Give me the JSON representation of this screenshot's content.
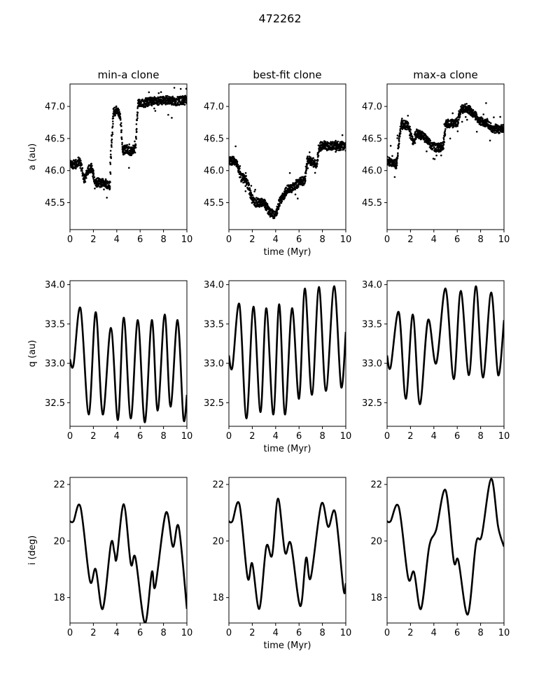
{
  "figure": {
    "suptitle": "472262",
    "columns": [
      "min-a clone",
      "best-fit clone",
      "max-a clone"
    ],
    "xlabel": "time (Myr)",
    "ylabels": [
      "a (au)",
      "q (au)",
      "i (deg)"
    ]
  },
  "chart_data": [
    {
      "type": "scatter",
      "row": 0,
      "col": 0,
      "title": "min-a clone",
      "xlabel": "",
      "ylabel": "a (au)",
      "xlim": [
        0,
        10
      ],
      "ylim": [
        45.08,
        47.35
      ],
      "xticks": [
        0,
        2,
        4,
        6,
        8,
        10
      ],
      "yticks": [
        45.5,
        46.0,
        46.5,
        47.0
      ],
      "series": [
        {
          "x": [
            0,
            0.5,
            0.8,
            1.0,
            1.2,
            1.5,
            1.8,
            2.0,
            2.1,
            2.3,
            2.6,
            3.0,
            3.4,
            3.5,
            3.7,
            4.0,
            4.3,
            4.5,
            4.8,
            5.2,
            5.6,
            5.8,
            6.2,
            7.0,
            8.0,
            9.0,
            10.0
          ],
          "y": [
            46.1,
            46.1,
            46.15,
            46.05,
            45.85,
            46.0,
            46.05,
            45.95,
            45.8,
            45.82,
            45.8,
            45.82,
            45.75,
            46.3,
            46.9,
            46.95,
            46.85,
            46.3,
            46.35,
            46.3,
            46.35,
            47.05,
            47.05,
            47.08,
            47.1,
            47.08,
            47.1
          ]
        }
      ]
    },
    {
      "type": "scatter",
      "row": 0,
      "col": 1,
      "title": "best-fit clone",
      "xlabel": "time (Myr)",
      "ylabel": "",
      "xlim": [
        0,
        10
      ],
      "ylim": [
        45.08,
        47.35
      ],
      "xticks": [
        0,
        2,
        4,
        6,
        8,
        10
      ],
      "yticks": [
        45.5,
        46.0,
        46.5,
        47.0
      ],
      "series": [
        {
          "x": [
            0,
            0.5,
            0.8,
            1.0,
            1.5,
            2.0,
            2.3,
            3.0,
            3.5,
            4.0,
            4.3,
            4.8,
            5.0,
            5.5,
            6.0,
            6.5,
            6.7,
            7.0,
            7.5,
            7.7,
            8.0,
            8.5,
            9.0,
            9.5,
            10.0
          ],
          "y": [
            46.15,
            46.15,
            46.05,
            45.9,
            45.85,
            45.55,
            45.5,
            45.5,
            45.35,
            45.3,
            45.5,
            45.65,
            45.7,
            45.75,
            45.82,
            45.85,
            46.15,
            46.15,
            46.1,
            46.35,
            46.4,
            46.38,
            46.4,
            46.38,
            46.4
          ]
        }
      ]
    },
    {
      "type": "scatter",
      "row": 0,
      "col": 2,
      "title": "max-a clone",
      "xlabel": "",
      "ylabel": "",
      "xlim": [
        0,
        10
      ],
      "ylim": [
        45.08,
        47.35
      ],
      "xticks": [
        0,
        2,
        4,
        6,
        8,
        10
      ],
      "yticks": [
        45.5,
        46.0,
        46.5,
        47.0
      ],
      "series": [
        {
          "x": [
            0,
            0.8,
            1.0,
            1.2,
            1.8,
            2.2,
            2.5,
            3.0,
            3.5,
            3.8,
            4.2,
            4.8,
            5.0,
            6.0,
            6.3,
            6.8,
            7.5,
            7.8,
            8.5,
            9.0,
            10.0
          ],
          "y": [
            46.15,
            46.1,
            46.45,
            46.72,
            46.7,
            46.45,
            46.58,
            46.55,
            46.45,
            46.4,
            46.35,
            46.38,
            46.72,
            46.75,
            46.95,
            46.98,
            46.88,
            46.78,
            46.75,
            46.65,
            46.65
          ]
        }
      ]
    },
    {
      "type": "line",
      "row": 1,
      "col": 0,
      "title": "",
      "xlabel": "",
      "ylabel": "q (au)",
      "xlim": [
        0,
        10
      ],
      "ylim": [
        32.2,
        34.05
      ],
      "xticks": [
        0,
        2,
        4,
        6,
        8,
        10
      ],
      "yticks": [
        32.5,
        33.0,
        33.5,
        34.0
      ],
      "series": [
        {
          "x": [
            0,
            0.3,
            0.9,
            1.6,
            2.2,
            2.8,
            3.5,
            4.1,
            4.6,
            5.2,
            5.8,
            6.4,
            7.0,
            7.5,
            8.1,
            8.6,
            9.2,
            9.7,
            10.0
          ],
          "y": [
            33.05,
            32.98,
            33.7,
            32.35,
            33.65,
            32.35,
            33.45,
            32.28,
            33.58,
            32.3,
            33.55,
            32.25,
            33.55,
            32.4,
            33.62,
            32.45,
            33.55,
            32.3,
            32.6
          ]
        }
      ]
    },
    {
      "type": "line",
      "row": 1,
      "col": 1,
      "title": "",
      "xlabel": "time (Myr)",
      "ylabel": "",
      "xlim": [
        0,
        10
      ],
      "ylim": [
        32.2,
        34.05
      ],
      "xticks": [
        0,
        2,
        4,
        6,
        8,
        10
      ],
      "yticks": [
        32.5,
        33.0,
        33.5,
        34.0
      ],
      "series": [
        {
          "x": [
            0,
            0.3,
            0.9,
            1.5,
            2.1,
            2.7,
            3.2,
            3.8,
            4.3,
            4.8,
            5.4,
            6.0,
            6.5,
            7.1,
            7.7,
            8.3,
            9.0,
            9.6,
            10.0
          ],
          "y": [
            33.1,
            32.95,
            33.75,
            32.3,
            33.72,
            32.38,
            33.7,
            32.35,
            33.75,
            32.35,
            33.7,
            32.55,
            33.95,
            32.6,
            33.97,
            32.65,
            33.98,
            32.7,
            33.4
          ]
        }
      ]
    },
    {
      "type": "line",
      "row": 1,
      "col": 2,
      "title": "",
      "xlabel": "",
      "ylabel": "",
      "xlim": [
        0,
        10
      ],
      "ylim": [
        32.2,
        34.05
      ],
      "xticks": [
        0,
        2,
        4,
        6,
        8,
        10
      ],
      "yticks": [
        32.5,
        33.0,
        33.5,
        34.0
      ],
      "series": [
        {
          "x": [
            0,
            0.3,
            1.0,
            1.6,
            2.2,
            2.8,
            3.5,
            4.2,
            5.0,
            5.7,
            6.3,
            7.0,
            7.6,
            8.2,
            8.9,
            9.5,
            10.0
          ],
          "y": [
            33.1,
            32.95,
            33.65,
            32.55,
            33.62,
            32.48,
            33.55,
            33.0,
            33.95,
            32.8,
            33.92,
            32.85,
            33.98,
            32.82,
            33.9,
            32.85,
            33.55
          ]
        }
      ]
    },
    {
      "type": "line",
      "row": 2,
      "col": 0,
      "title": "",
      "xlabel": "",
      "ylabel": "i (deg)",
      "xlim": [
        0,
        10
      ],
      "ylim": [
        17.1,
        22.25
      ],
      "xticks": [
        0,
        2,
        4,
        6,
        8,
        10
      ],
      "yticks": [
        18,
        20,
        22
      ],
      "series": [
        {
          "x": [
            0,
            0.3,
            0.9,
            1.7,
            2.2,
            2.8,
            3.5,
            3.8,
            4.0,
            4.6,
            5.2,
            5.6,
            6.4,
            7.0,
            7.3,
            8.2,
            8.8,
            9.3,
            10.0
          ],
          "y": [
            20.7,
            20.7,
            21.2,
            18.6,
            19.0,
            17.6,
            19.9,
            19.6,
            19.4,
            21.3,
            19.2,
            19.4,
            17.1,
            18.9,
            18.4,
            21.0,
            19.8,
            20.5,
            17.6
          ]
        }
      ]
    },
    {
      "type": "line",
      "row": 2,
      "col": 1,
      "title": "",
      "xlabel": "time (Myr)",
      "ylabel": "",
      "xlim": [
        0,
        10
      ],
      "ylim": [
        17.1,
        22.25
      ],
      "xticks": [
        0,
        2,
        4,
        6,
        8,
        10
      ],
      "yticks": [
        18,
        20,
        22
      ],
      "series": [
        {
          "x": [
            0,
            0.3,
            0.9,
            1.6,
            2.0,
            2.6,
            3.2,
            3.7,
            4.2,
            4.8,
            5.3,
            6.1,
            6.6,
            7.0,
            7.9,
            8.5,
            9.1,
            9.8,
            10.0
          ],
          "y": [
            20.7,
            20.7,
            21.3,
            18.7,
            19.2,
            17.6,
            19.8,
            19.5,
            21.5,
            19.6,
            19.9,
            17.7,
            19.4,
            18.7,
            21.3,
            20.5,
            21.0,
            18.3,
            18.5
          ]
        }
      ]
    },
    {
      "type": "line",
      "row": 2,
      "col": 2,
      "title": "",
      "xlabel": "",
      "ylabel": "",
      "xlim": [
        0,
        10
      ],
      "ylim": [
        17.1,
        22.25
      ],
      "xticks": [
        0,
        2,
        4,
        6,
        8,
        10
      ],
      "yticks": [
        18,
        20,
        22
      ],
      "series": [
        {
          "x": [
            0,
            0.3,
            1.0,
            1.8,
            2.3,
            2.9,
            3.6,
            4.2,
            5.0,
            5.7,
            6.1,
            6.9,
            7.6,
            8.1,
            8.9,
            9.5,
            10.0
          ],
          "y": [
            20.7,
            20.7,
            21.2,
            18.7,
            18.9,
            17.6,
            19.8,
            20.4,
            21.8,
            19.3,
            19.3,
            17.4,
            19.9,
            20.2,
            22.2,
            20.5,
            19.8
          ]
        }
      ]
    }
  ]
}
